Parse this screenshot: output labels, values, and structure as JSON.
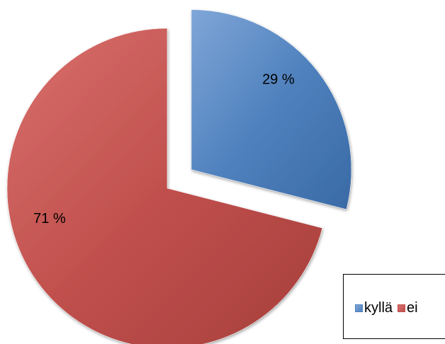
{
  "chart_data": {
    "type": "pie",
    "categories": [
      "kyllä",
      "ei"
    ],
    "values": [
      29,
      71
    ],
    "labels": [
      "29 %",
      "71 %"
    ],
    "colors": [
      "#4f81bd",
      "#c0504d"
    ],
    "exploded": [
      true,
      false
    ],
    "legend": {
      "position": "bottom-right",
      "entries": [
        "kyllä",
        "ei"
      ]
    }
  }
}
